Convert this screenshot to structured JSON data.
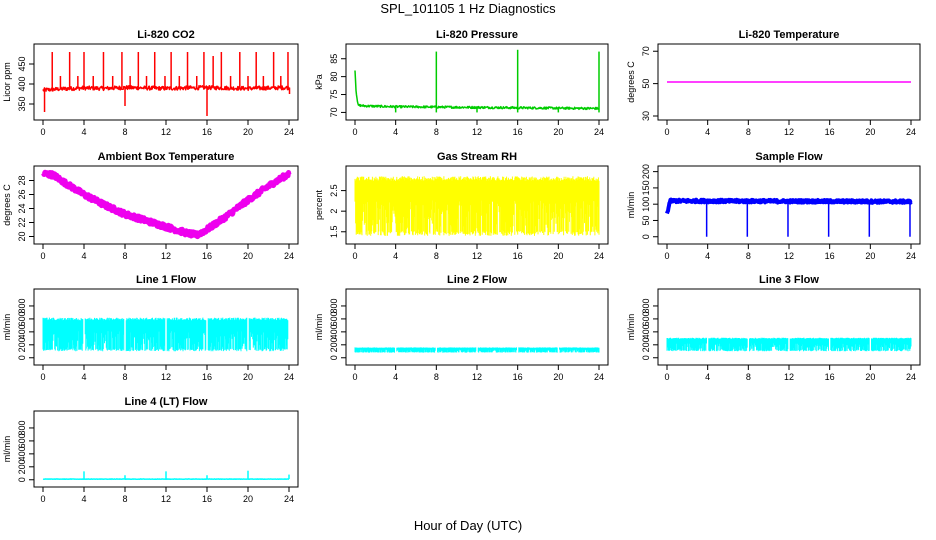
{
  "page": {
    "title": "SPL_101105  1 Hz Diagnostics",
    "x_title": "Hour of Day (UTC)"
  },
  "colors": {
    "co2": "#ff0000",
    "pressure": "#00cc00",
    "temperature": "#ff00ff",
    "box_temp": "#ee00ee",
    "rh": "#ffff00",
    "sample_flow": "#0000ff",
    "line_flow": "#00ffff"
  },
  "chart_data": [
    {
      "id": "co2",
      "type": "line",
      "title": "Li-820 CO2",
      "ylabel": "Licor ppm",
      "x_ticks": [
        0,
        4,
        8,
        12,
        16,
        20,
        24
      ],
      "x_range": [
        0,
        24
      ],
      "y_ticks": [
        350,
        400,
        450
      ],
      "ylim": [
        320,
        490
      ],
      "series": [
        {
          "color": "#ff0000",
          "baseline": 390,
          "noise": 5,
          "x": [
            0,
            2,
            4,
            6,
            8,
            10,
            12,
            14,
            16,
            18,
            20,
            22,
            24
          ],
          "values": [
            385,
            388,
            390,
            389,
            391,
            390,
            389,
            390,
            391,
            390,
            389,
            390,
            391
          ],
          "spikes": [
            {
              "x": 0.15,
              "y": 330
            },
            {
              "x": 0.9,
              "y": 480
            },
            {
              "x": 1.7,
              "y": 420
            },
            {
              "x": 2.6,
              "y": 480
            },
            {
              "x": 3.4,
              "y": 420
            },
            {
              "x": 4.0,
              "y": 480
            },
            {
              "x": 4.9,
              "y": 420
            },
            {
              "x": 5.9,
              "y": 480
            },
            {
              "x": 6.8,
              "y": 420
            },
            {
              "x": 7.7,
              "y": 480
            },
            {
              "x": 8.0,
              "y": 345
            },
            {
              "x": 8.5,
              "y": 420
            },
            {
              "x": 9.3,
              "y": 480
            },
            {
              "x": 10.1,
              "y": 420
            },
            {
              "x": 10.9,
              "y": 480
            },
            {
              "x": 11.9,
              "y": 420
            },
            {
              "x": 12.5,
              "y": 480
            },
            {
              "x": 13.3,
              "y": 420
            },
            {
              "x": 14.1,
              "y": 480
            },
            {
              "x": 15.0,
              "y": 420
            },
            {
              "x": 15.7,
              "y": 480
            },
            {
              "x": 16.0,
              "y": 320
            },
            {
              "x": 16.6,
              "y": 470
            },
            {
              "x": 17.4,
              "y": 480
            },
            {
              "x": 18.3,
              "y": 420
            },
            {
              "x": 19.2,
              "y": 480
            },
            {
              "x": 20.0,
              "y": 420
            },
            {
              "x": 20.8,
              "y": 480
            },
            {
              "x": 21.5,
              "y": 420
            },
            {
              "x": 22.5,
              "y": 480
            },
            {
              "x": 23.2,
              "y": 420
            },
            {
              "x": 23.9,
              "y": 480
            },
            {
              "x": 24.05,
              "y": 375
            }
          ]
        }
      ]
    },
    {
      "id": "pressure",
      "type": "line",
      "title": "Li-820 Pressure",
      "ylabel": "kPa",
      "x_ticks": [
        0,
        4,
        8,
        12,
        16,
        20,
        24
      ],
      "x_range": [
        0,
        24
      ],
      "y_ticks": [
        70,
        75,
        80,
        85
      ],
      "ylim": [
        69,
        88
      ],
      "series": [
        {
          "color": "#00cc00",
          "baseline": 71.5,
          "noise": 0.3,
          "x": [
            0,
            0.1,
            0.3,
            1,
            4,
            8,
            12,
            16,
            20,
            24
          ],
          "values": [
            82,
            76,
            72,
            71.8,
            71.6,
            71.5,
            71.4,
            71.3,
            71.2,
            71.1
          ],
          "spikes": [
            {
              "x": 4.0,
              "y": 70
            },
            {
              "x": 8.0,
              "y": 87
            },
            {
              "x": 8.0,
              "y": 70
            },
            {
              "x": 12.0,
              "y": 70
            },
            {
              "x": 16.0,
              "y": 87.5
            },
            {
              "x": 16.0,
              "y": 70
            },
            {
              "x": 20.0,
              "y": 70
            },
            {
              "x": 24.0,
              "y": 87
            },
            {
              "x": 24.0,
              "y": 70
            }
          ]
        }
      ]
    },
    {
      "id": "temperature",
      "type": "line",
      "title": "Li-820 Temperature",
      "ylabel": "degrees C",
      "x_ticks": [
        0,
        4,
        8,
        12,
        16,
        20,
        24
      ],
      "x_range": [
        0,
        24
      ],
      "y_ticks": [
        30,
        50,
        70
      ],
      "ylim": [
        30,
        72
      ],
      "series": [
        {
          "color": "#ff00ff",
          "baseline": 51,
          "noise": 0,
          "x": [
            0,
            24
          ],
          "values": [
            51,
            51
          ],
          "spikes": []
        }
      ]
    },
    {
      "id": "box_temp",
      "type": "line",
      "title": "Ambient Box Temperature",
      "ylabel": "degrees C",
      "x_ticks": [
        0,
        4,
        8,
        12,
        16,
        20,
        24
      ],
      "x_range": [
        0,
        24
      ],
      "y_ticks": [
        20,
        22,
        24,
        26,
        28
      ],
      "ylim": [
        19.5,
        29.5
      ],
      "series": [
        {
          "color": "#ee00ee",
          "baseline": null,
          "noise": 0.35,
          "thick": 5,
          "x": [
            0,
            1,
            2,
            4,
            6,
            8,
            10,
            12,
            14,
            15,
            16,
            18,
            20,
            22,
            24
          ],
          "values": [
            29.0,
            28.8,
            27.8,
            26.0,
            24.5,
            23.2,
            22.3,
            21.4,
            20.5,
            20.2,
            21.0,
            23.0,
            25.2,
            27.2,
            29.0
          ],
          "spikes": []
        }
      ]
    },
    {
      "id": "rh",
      "type": "line",
      "title": "Gas Stream RH",
      "ylabel": "percent",
      "x_ticks": [
        0,
        4,
        8,
        12,
        16,
        20,
        24
      ],
      "x_range": [
        0,
        24
      ],
      "y_ticks": [
        1.5,
        2.0,
        2.5
      ],
      "ylim": [
        1.3,
        3.0
      ],
      "series": [
        {
          "color": "#ffff00",
          "band": [
            1.4,
            2.85
          ],
          "dense": true,
          "x": [
            0,
            24
          ],
          "values": [
            2.8,
            2.8
          ],
          "spikes": []
        }
      ]
    },
    {
      "id": "sample_flow",
      "type": "line",
      "title": "Sample Flow",
      "ylabel": "ml/min",
      "x_ticks": [
        0,
        4,
        8,
        12,
        16,
        20,
        24
      ],
      "x_range": [
        0,
        24
      ],
      "y_ticks": [
        0,
        50,
        100,
        150,
        200
      ],
      "ylim": [
        -10,
        205
      ],
      "series": [
        {
          "color": "#0000ff",
          "baseline": 110,
          "noise": 4,
          "thick": 4,
          "x": [
            0,
            0.3,
            1,
            24
          ],
          "values": [
            70,
            110,
            110,
            108
          ],
          "spikes": [
            {
              "x": 3.9,
              "y": 0
            },
            {
              "x": 7.9,
              "y": 0
            },
            {
              "x": 11.9,
              "y": 0
            },
            {
              "x": 15.9,
              "y": 0
            },
            {
              "x": 19.9,
              "y": 0
            },
            {
              "x": 23.9,
              "y": 0
            }
          ]
        }
      ]
    },
    {
      "id": "line1",
      "type": "line",
      "title": "Line 1 Flow",
      "ylabel": "ml/min",
      "x_ticks": [
        0,
        4,
        8,
        12,
        16,
        20,
        24
      ],
      "x_range": [
        0,
        24
      ],
      "y_ticks": [
        0,
        200,
        400,
        600,
        800
      ],
      "ylim": [
        -50,
        1000
      ],
      "series": [
        {
          "color": "#00ffff",
          "band": [
            100,
            620
          ],
          "dense": true,
          "gaps": [
            4,
            8,
            12,
            16,
            20,
            24
          ],
          "x": [
            0,
            24
          ],
          "values": [
            600,
            600
          ],
          "spikes": []
        }
      ]
    },
    {
      "id": "line2",
      "type": "line",
      "title": "Line 2 Flow",
      "ylabel": "ml/min",
      "x_ticks": [
        0,
        4,
        8,
        12,
        16,
        20,
        24
      ],
      "x_range": [
        0,
        24
      ],
      "y_ticks": [
        0,
        200,
        400,
        600,
        800
      ],
      "ylim": [
        -50,
        1000
      ],
      "series": [
        {
          "color": "#00ffff",
          "band": [
            80,
            160
          ],
          "dense": true,
          "gaps": [
            4,
            8,
            12,
            16,
            20
          ],
          "x": [
            0,
            24
          ],
          "values": [
            150,
            150
          ],
          "spikes": []
        }
      ]
    },
    {
      "id": "line3",
      "type": "line",
      "title": "Line 3 Flow",
      "ylabel": "ml/min",
      "x_ticks": [
        0,
        4,
        8,
        12,
        16,
        20,
        24
      ],
      "x_range": [
        0,
        24
      ],
      "y_ticks": [
        0,
        200,
        400,
        600,
        800
      ],
      "ylim": [
        -50,
        1000
      ],
      "series": [
        {
          "color": "#00ffff",
          "band": [
            100,
            310
          ],
          "dense": true,
          "gaps": [
            4,
            8,
            12,
            16,
            20
          ],
          "x": [
            0,
            24
          ],
          "values": [
            300,
            300
          ],
          "spikes": []
        }
      ]
    },
    {
      "id": "line4",
      "type": "line",
      "title": "Line 4 (LT) Flow",
      "ylabel": "ml/min",
      "x_ticks": [
        0,
        4,
        8,
        12,
        16,
        20,
        24
      ],
      "x_range": [
        0,
        24
      ],
      "y_ticks": [
        0,
        200,
        400,
        600,
        800
      ],
      "ylim": [
        -50,
        1000
      ],
      "series": [
        {
          "color": "#00ffff",
          "baseline": 10,
          "noise": 3,
          "x": [
            0,
            24
          ],
          "values": [
            10,
            10
          ],
          "spikes": [
            {
              "x": 4.0,
              "y": 130
            },
            {
              "x": 8.0,
              "y": 70
            },
            {
              "x": 12.0,
              "y": 130
            },
            {
              "x": 16.0,
              "y": 70
            },
            {
              "x": 20.0,
              "y": 140
            },
            {
              "x": 24.0,
              "y": 80
            }
          ]
        }
      ]
    }
  ]
}
